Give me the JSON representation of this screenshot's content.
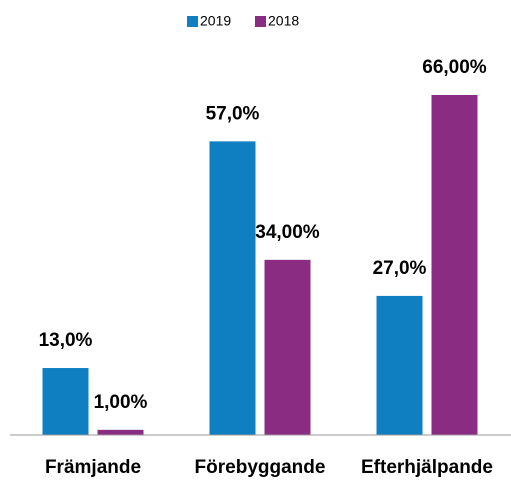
{
  "chart_data": {
    "type": "bar",
    "categories": [
      "Främjande",
      "Förebyggande",
      "Efterhjälpande"
    ],
    "series": [
      {
        "name": "2019",
        "color": "#0f7fc1",
        "values": [
          13,
          57,
          27
        ],
        "value_labels": [
          "13,0%",
          "57,0%",
          "27,0%"
        ]
      },
      {
        "name": "2018",
        "color": "#8b2c83",
        "values": [
          1,
          34,
          66
        ],
        "value_labels": [
          "1,00%",
          "34,00%",
          "66,00%"
        ]
      }
    ],
    "legend": "top"
  }
}
